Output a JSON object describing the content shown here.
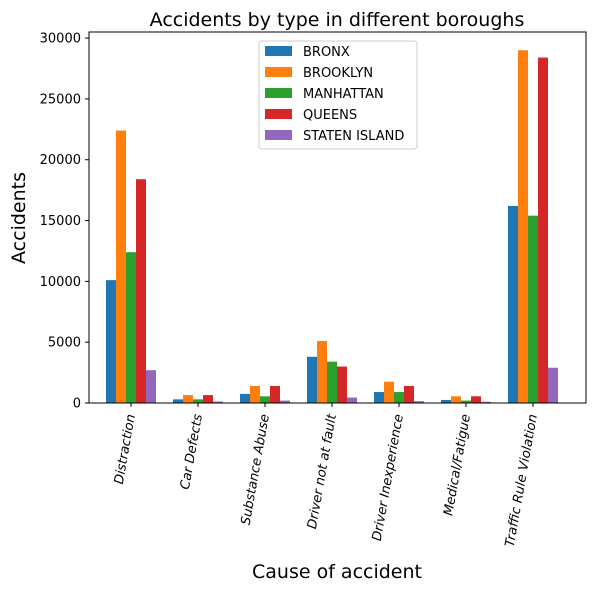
{
  "chart_data": {
    "type": "bar",
    "title": "Accidents by type in different boroughs",
    "xlabel": "Cause of accident",
    "ylabel": "Accidents",
    "categories": [
      "Distraction",
      "Car Defects",
      "Substance Abuse",
      "Driver not at fault",
      "Driver Inexperience",
      "Medical/Fatigue",
      "Traffic Rule Violation"
    ],
    "ylim": [
      0,
      30500
    ],
    "yticks": [
      0,
      5000,
      10000,
      15000,
      20000,
      25000,
      30000
    ],
    "grid": false,
    "legend_position": "top-center",
    "series": [
      {
        "name": "BRONX",
        "color": "#1f77b4",
        "values": [
          10100,
          300,
          750,
          3800,
          900,
          250,
          16200
        ]
      },
      {
        "name": "BROOKLYN",
        "color": "#ff7f0e",
        "values": [
          22400,
          650,
          1400,
          5100,
          1750,
          550,
          29000
        ]
      },
      {
        "name": "MANHATTAN",
        "color": "#2ca02c",
        "values": [
          12400,
          300,
          550,
          3400,
          900,
          200,
          15400
        ]
      },
      {
        "name": "QUEENS",
        "color": "#d62728",
        "values": [
          18400,
          650,
          1400,
          3000,
          1400,
          550,
          28400
        ]
      },
      {
        "name": "STATEN ISLAND",
        "color": "#9467bd",
        "values": [
          2700,
          120,
          200,
          450,
          150,
          100,
          2900
        ]
      }
    ]
  }
}
